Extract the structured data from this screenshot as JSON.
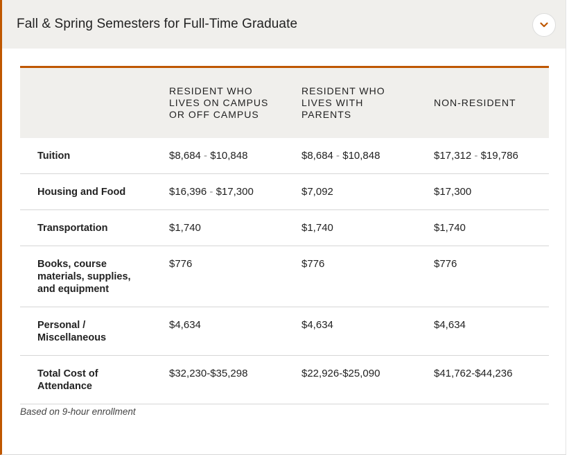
{
  "accordion": {
    "title": "Fall & Spring Semesters for Full-Time Graduate",
    "toggle_icon": "chevron-down-icon",
    "accent_color": "#bf5700"
  },
  "table": {
    "headers": [
      "",
      "RESIDENT WHO LIVES ON CAMPUS OR OFF CAMPUS",
      "RESIDENT WHO LIVES WITH PARENTS",
      "NON-RESIDENT"
    ],
    "rows": [
      {
        "label": "Tuition",
        "c1": [
          "$8,684",
          "$10,848"
        ],
        "c2": [
          "$8,684",
          "$10,848"
        ],
        "c3": [
          "$17,312",
          "$19,786"
        ]
      },
      {
        "label": "Housing and Food",
        "c1": [
          "$16,396",
          "$17,300"
        ],
        "c2": [
          "$7,092"
        ],
        "c3": [
          "$17,300"
        ]
      },
      {
        "label": "Transportation",
        "c1": [
          "$1,740"
        ],
        "c2": [
          "$1,740"
        ],
        "c3": [
          "$1,740"
        ]
      },
      {
        "label": "Books, course materials, supplies, and equipment",
        "c1": [
          "$776"
        ],
        "c2": [
          "$776"
        ],
        "c3": [
          "$776"
        ]
      },
      {
        "label": "Personal / Miscellaneous",
        "c1": [
          "$4,634"
        ],
        "c2": [
          "$4,634"
        ],
        "c3": [
          "$4,634"
        ]
      },
      {
        "label": "Total Cost of Attendance",
        "c1": [
          "$32,230-$35,298"
        ],
        "c2": [
          "$22,926-$25,090"
        ],
        "c3": [
          "$41,762-$44,236"
        ]
      }
    ]
  },
  "footnote": "Based on 9-hour enrollment"
}
